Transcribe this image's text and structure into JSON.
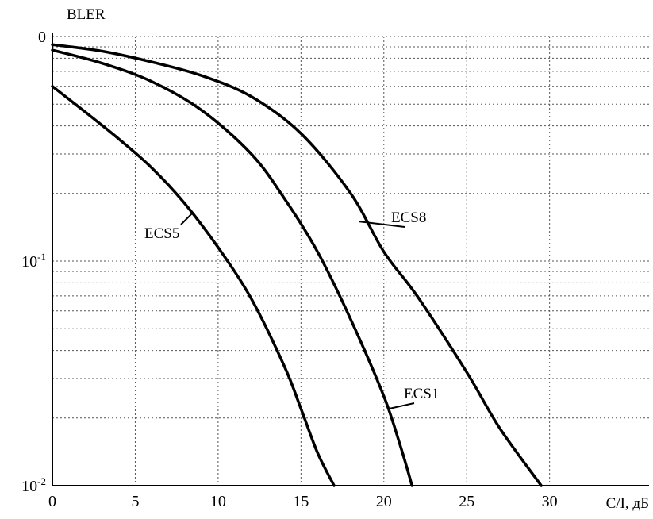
{
  "chart_data": {
    "type": "line",
    "title": "",
    "xlabel": "С/I, дБ",
    "ylabel": "BLER",
    "xlim": [
      0,
      36
    ],
    "ylim": [
      0.01,
      1
    ],
    "y_scale": "log",
    "grid": true,
    "x_ticks": [
      {
        "value": 0,
        "label": "0"
      },
      {
        "value": 5,
        "label": "5"
      },
      {
        "value": 10,
        "label": "10"
      },
      {
        "value": 15,
        "label": "15"
      },
      {
        "value": 20,
        "label": "20"
      },
      {
        "value": 25,
        "label": "25"
      },
      {
        "value": 30,
        "label": "30"
      }
    ],
    "y_ticks": [
      {
        "value": 1,
        "label": "0"
      },
      {
        "value": 0.1,
        "label": "10",
        "exp": "-1"
      },
      {
        "value": 0.01,
        "label": "10",
        "exp": "-2"
      }
    ],
    "series": [
      {
        "name": "ECS5",
        "x": [
          0,
          2,
          4,
          6,
          8,
          10,
          12,
          14,
          15,
          16,
          17
        ],
        "y": [
          0.6,
          0.46,
          0.35,
          0.26,
          0.18,
          0.115,
          0.068,
          0.034,
          0.022,
          0.014,
          0.01
        ]
      },
      {
        "name": "ECS1",
        "x": [
          0,
          3,
          6,
          9,
          12,
          14,
          16,
          18,
          20,
          21,
          21.7
        ],
        "y": [
          0.87,
          0.76,
          0.63,
          0.47,
          0.3,
          0.19,
          0.11,
          0.055,
          0.025,
          0.015,
          0.01
        ]
      },
      {
        "name": "ECS8",
        "x": [
          0,
          3,
          6,
          9,
          12,
          15,
          18,
          20,
          22,
          25,
          27,
          29.5
        ],
        "y": [
          0.92,
          0.86,
          0.77,
          0.67,
          0.54,
          0.37,
          0.2,
          0.11,
          0.07,
          0.032,
          0.018,
          0.01
        ]
      }
    ]
  }
}
